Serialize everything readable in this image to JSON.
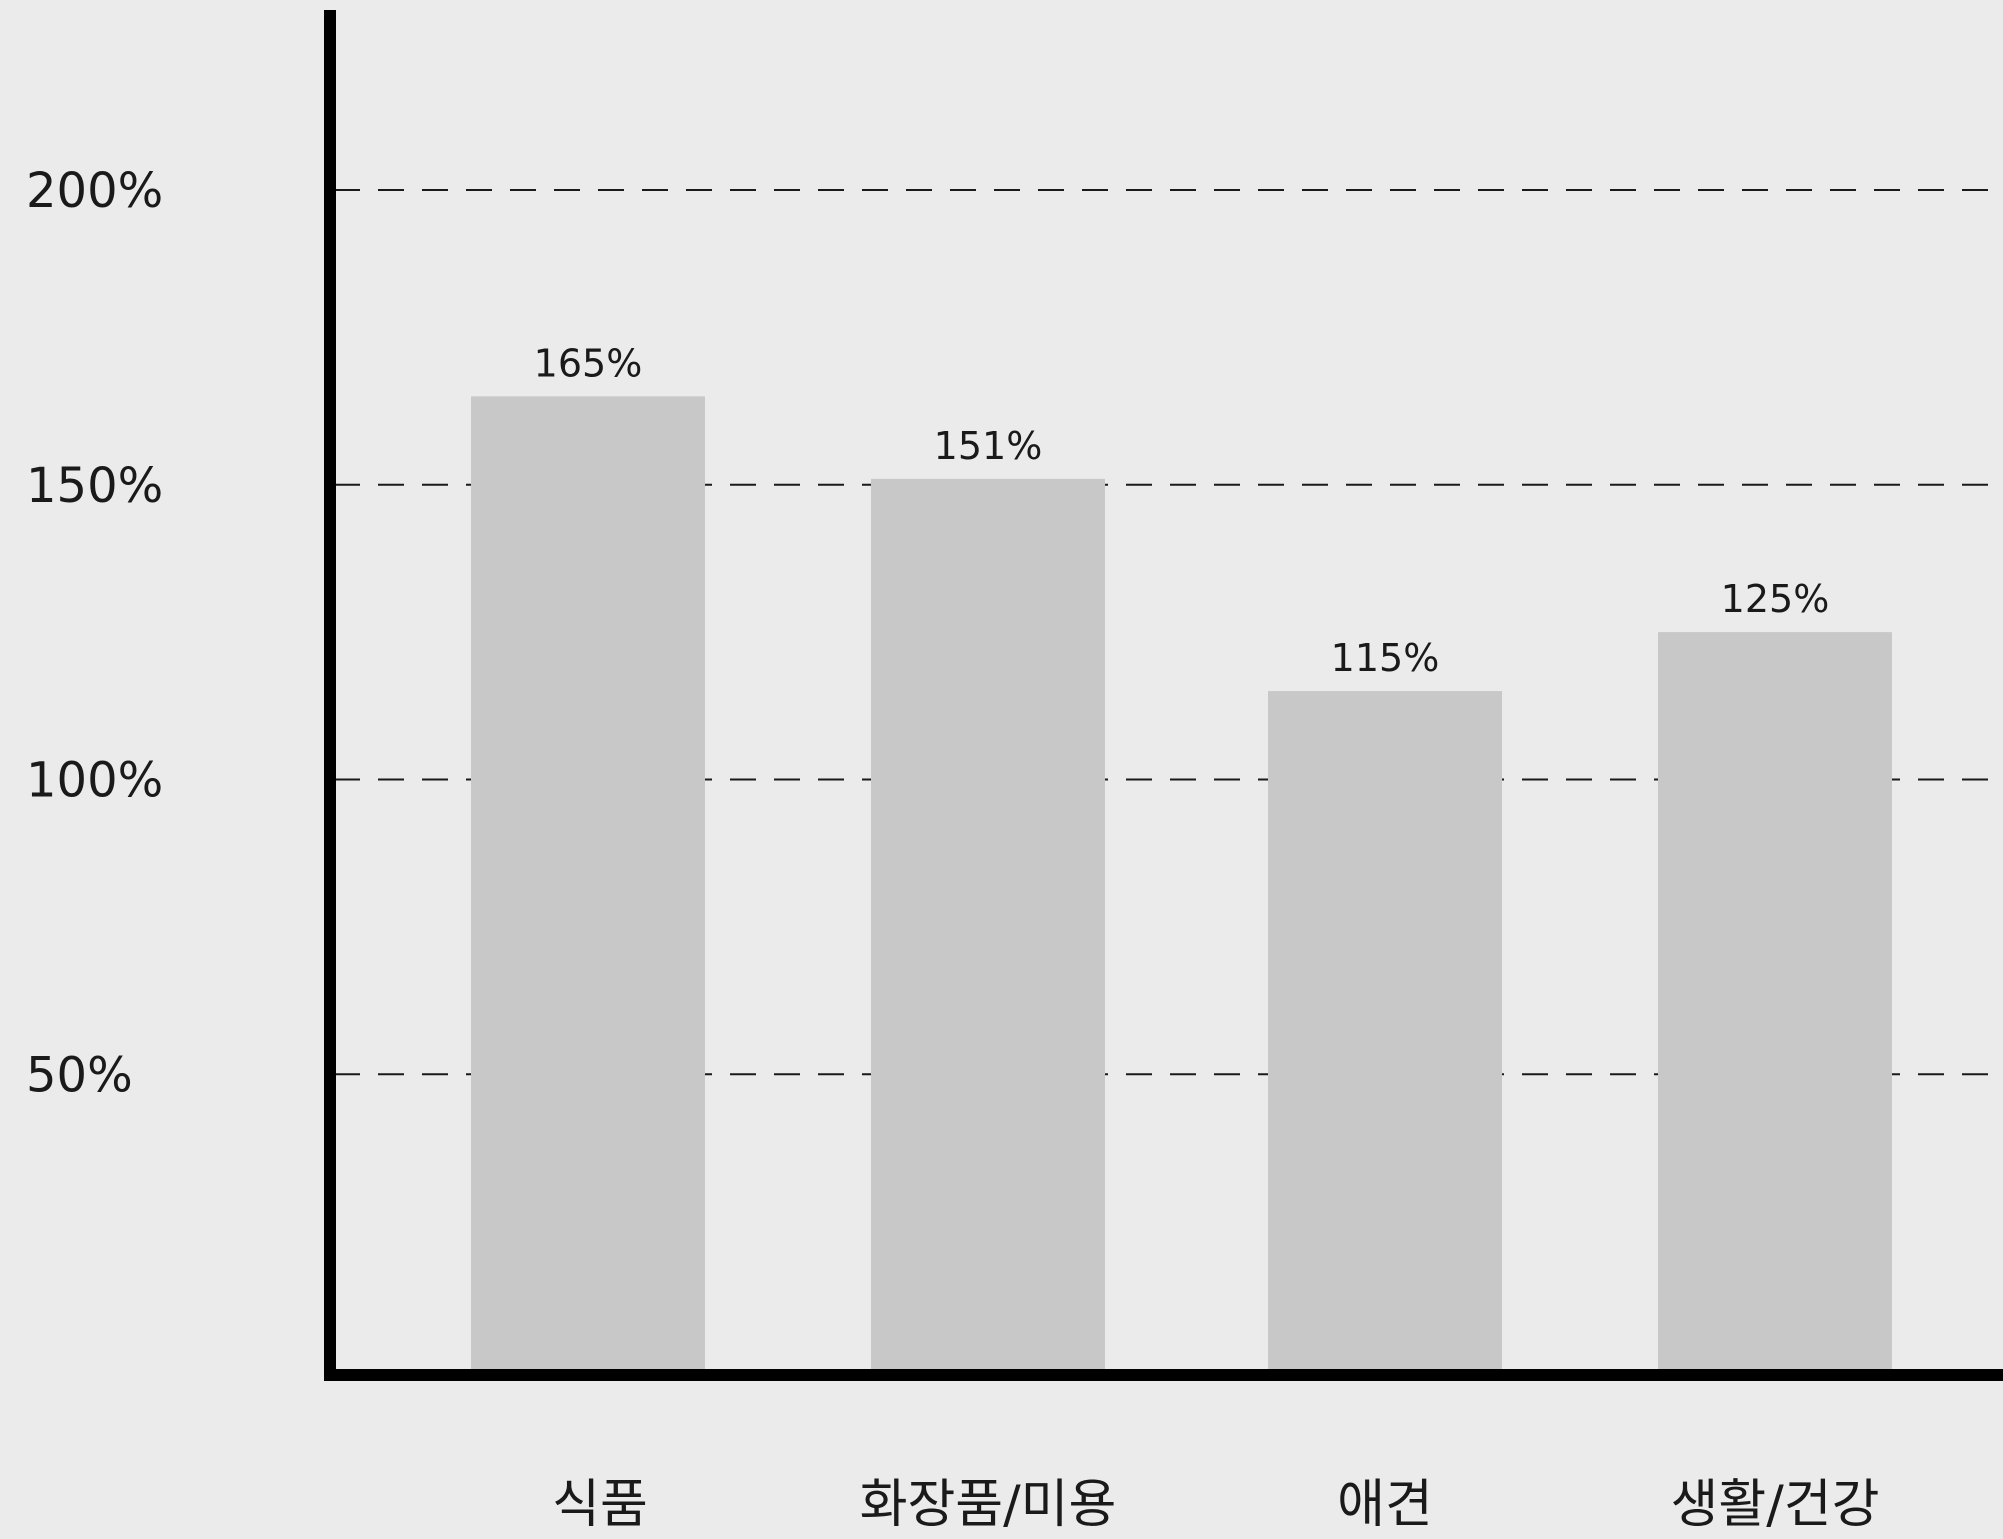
{
  "chart_data": {
    "type": "bar",
    "title": "",
    "xlabel": "",
    "ylabel": "",
    "categories": [
      "식품",
      "화장품/미용",
      "애견",
      "생활/건강"
    ],
    "values": [
      165,
      151,
      115,
      125
    ],
    "data_labels": [
      "165%",
      "151%",
      "115%",
      "125%"
    ],
    "y_ticks": [
      50,
      100,
      150,
      200
    ],
    "y_tick_labels": [
      "50%",
      "100%",
      "150%",
      "200%"
    ],
    "ylim": [
      0,
      230
    ],
    "grid": true,
    "grid_style": "dashed",
    "legend": "none",
    "colors": {
      "background": "#ebebeb",
      "bar": "#c8c8c8",
      "axis": "#000000",
      "grid": "#1a1a1a",
      "text": "#1a1a1a"
    }
  }
}
